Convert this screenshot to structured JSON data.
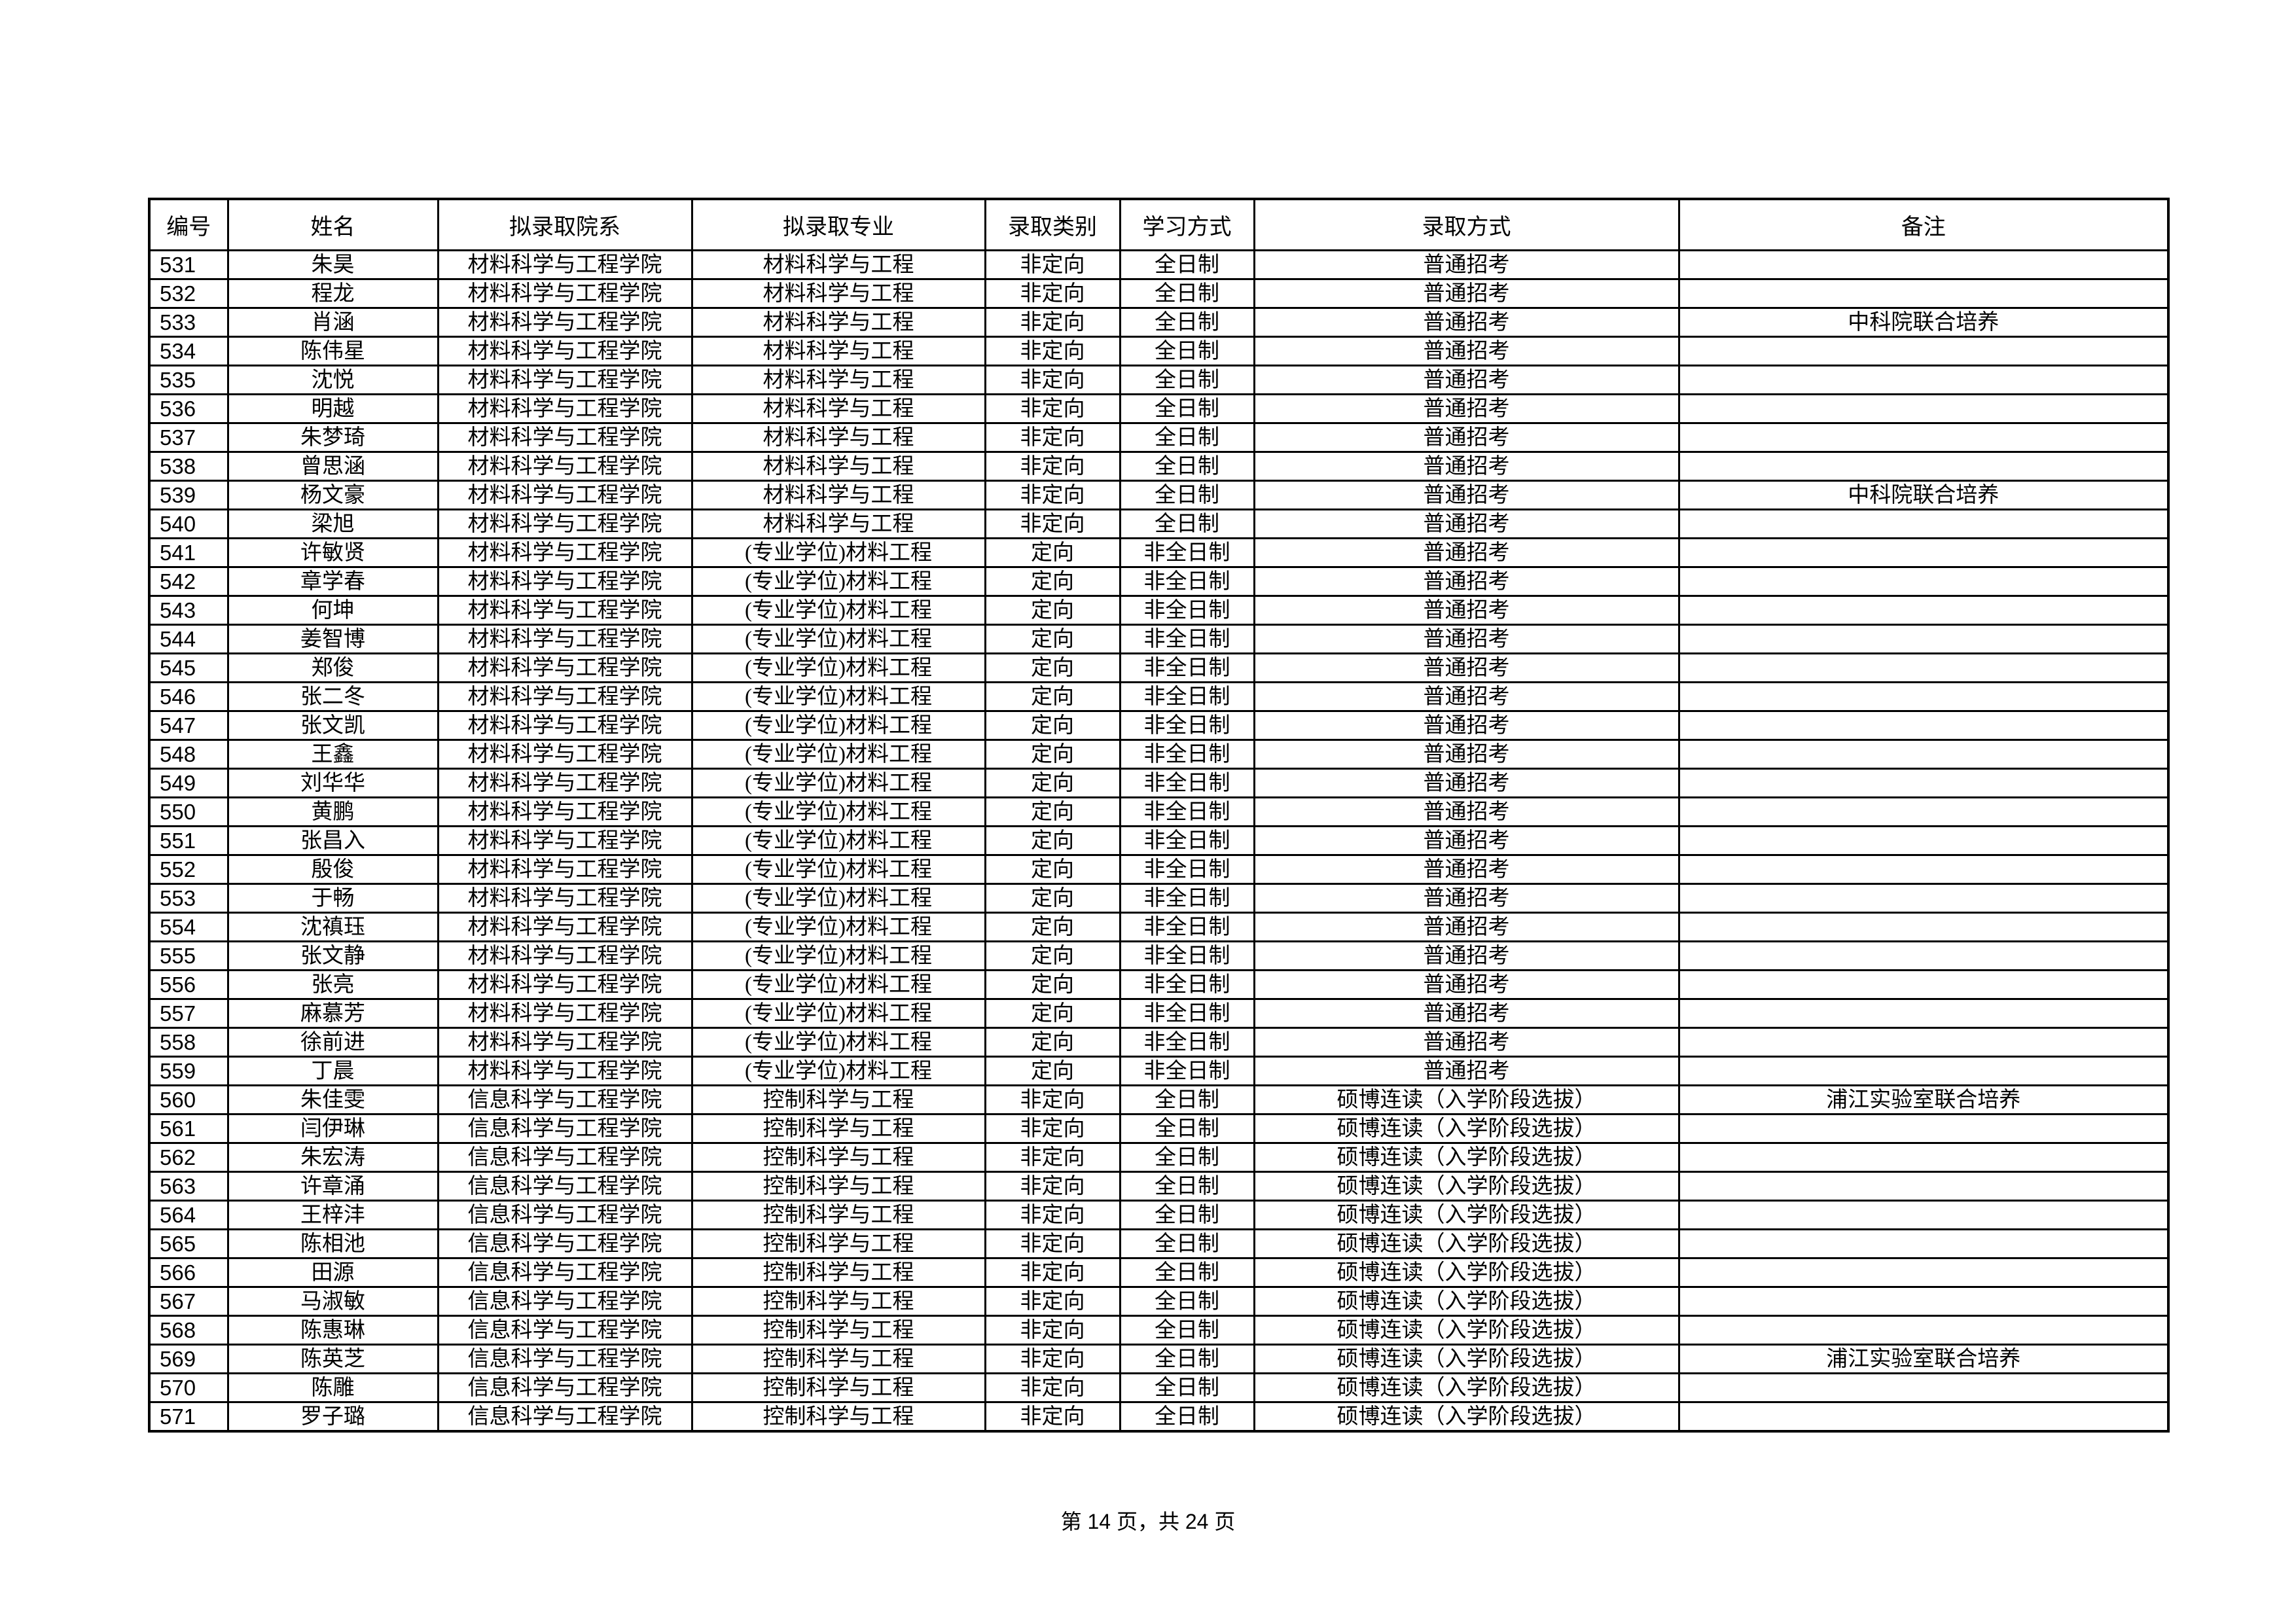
{
  "table": {
    "headers": [
      "编号",
      "姓名",
      "拟录取院系",
      "拟录取专业",
      "录取类别",
      "学习方式",
      "录取方式",
      "备注"
    ],
    "rows": [
      [
        "531",
        "朱昊",
        "材料科学与工程学院",
        "材料科学与工程",
        "非定向",
        "全日制",
        "普通招考",
        ""
      ],
      [
        "532",
        "程龙",
        "材料科学与工程学院",
        "材料科学与工程",
        "非定向",
        "全日制",
        "普通招考",
        ""
      ],
      [
        "533",
        "肖涵",
        "材料科学与工程学院",
        "材料科学与工程",
        "非定向",
        "全日制",
        "普通招考",
        "中科院联合培养"
      ],
      [
        "534",
        "陈伟星",
        "材料科学与工程学院",
        "材料科学与工程",
        "非定向",
        "全日制",
        "普通招考",
        ""
      ],
      [
        "535",
        "沈悦",
        "材料科学与工程学院",
        "材料科学与工程",
        "非定向",
        "全日制",
        "普通招考",
        ""
      ],
      [
        "536",
        "明越",
        "材料科学与工程学院",
        "材料科学与工程",
        "非定向",
        "全日制",
        "普通招考",
        ""
      ],
      [
        "537",
        "朱梦琦",
        "材料科学与工程学院",
        "材料科学与工程",
        "非定向",
        "全日制",
        "普通招考",
        ""
      ],
      [
        "538",
        "曾思涵",
        "材料科学与工程学院",
        "材料科学与工程",
        "非定向",
        "全日制",
        "普通招考",
        ""
      ],
      [
        "539",
        "杨文豪",
        "材料科学与工程学院",
        "材料科学与工程",
        "非定向",
        "全日制",
        "普通招考",
        "中科院联合培养"
      ],
      [
        "540",
        "梁旭",
        "材料科学与工程学院",
        "材料科学与工程",
        "非定向",
        "全日制",
        "普通招考",
        ""
      ],
      [
        "541",
        "许敏贤",
        "材料科学与工程学院",
        "(专业学位)材料工程",
        "定向",
        "非全日制",
        "普通招考",
        ""
      ],
      [
        "542",
        "章学春",
        "材料科学与工程学院",
        "(专业学位)材料工程",
        "定向",
        "非全日制",
        "普通招考",
        ""
      ],
      [
        "543",
        "何坤",
        "材料科学与工程学院",
        "(专业学位)材料工程",
        "定向",
        "非全日制",
        "普通招考",
        ""
      ],
      [
        "544",
        "姜智博",
        "材料科学与工程学院",
        "(专业学位)材料工程",
        "定向",
        "非全日制",
        "普通招考",
        ""
      ],
      [
        "545",
        "郑俊",
        "材料科学与工程学院",
        "(专业学位)材料工程",
        "定向",
        "非全日制",
        "普通招考",
        ""
      ],
      [
        "546",
        "张二冬",
        "材料科学与工程学院",
        "(专业学位)材料工程",
        "定向",
        "非全日制",
        "普通招考",
        ""
      ],
      [
        "547",
        "张文凯",
        "材料科学与工程学院",
        "(专业学位)材料工程",
        "定向",
        "非全日制",
        "普通招考",
        ""
      ],
      [
        "548",
        "王鑫",
        "材料科学与工程学院",
        "(专业学位)材料工程",
        "定向",
        "非全日制",
        "普通招考",
        ""
      ],
      [
        "549",
        "刘华华",
        "材料科学与工程学院",
        "(专业学位)材料工程",
        "定向",
        "非全日制",
        "普通招考",
        ""
      ],
      [
        "550",
        "黄鹏",
        "材料科学与工程学院",
        "(专业学位)材料工程",
        "定向",
        "非全日制",
        "普通招考",
        ""
      ],
      [
        "551",
        "张昌入",
        "材料科学与工程学院",
        "(专业学位)材料工程",
        "定向",
        "非全日制",
        "普通招考",
        ""
      ],
      [
        "552",
        "殷俊",
        "材料科学与工程学院",
        "(专业学位)材料工程",
        "定向",
        "非全日制",
        "普通招考",
        ""
      ],
      [
        "553",
        "于畅",
        "材料科学与工程学院",
        "(专业学位)材料工程",
        "定向",
        "非全日制",
        "普通招考",
        ""
      ],
      [
        "554",
        "沈禛珏",
        "材料科学与工程学院",
        "(专业学位)材料工程",
        "定向",
        "非全日制",
        "普通招考",
        ""
      ],
      [
        "555",
        "张文静",
        "材料科学与工程学院",
        "(专业学位)材料工程",
        "定向",
        "非全日制",
        "普通招考",
        ""
      ],
      [
        "556",
        "张亮",
        "材料科学与工程学院",
        "(专业学位)材料工程",
        "定向",
        "非全日制",
        "普通招考",
        ""
      ],
      [
        "557",
        "麻慕芳",
        "材料科学与工程学院",
        "(专业学位)材料工程",
        "定向",
        "非全日制",
        "普通招考",
        ""
      ],
      [
        "558",
        "徐前进",
        "材料科学与工程学院",
        "(专业学位)材料工程",
        "定向",
        "非全日制",
        "普通招考",
        ""
      ],
      [
        "559",
        "丁晨",
        "材料科学与工程学院",
        "(专业学位)材料工程",
        "定向",
        "非全日制",
        "普通招考",
        ""
      ],
      [
        "560",
        "朱佳雯",
        "信息科学与工程学院",
        "控制科学与工程",
        "非定向",
        "全日制",
        "硕博连读（入学阶段选拔）",
        "浦江实验室联合培养"
      ],
      [
        "561",
        "闫伊琳",
        "信息科学与工程学院",
        "控制科学与工程",
        "非定向",
        "全日制",
        "硕博连读（入学阶段选拔）",
        ""
      ],
      [
        "562",
        "朱宏涛",
        "信息科学与工程学院",
        "控制科学与工程",
        "非定向",
        "全日制",
        "硕博连读（入学阶段选拔）",
        ""
      ],
      [
        "563",
        "许章涌",
        "信息科学与工程学院",
        "控制科学与工程",
        "非定向",
        "全日制",
        "硕博连读（入学阶段选拔）",
        ""
      ],
      [
        "564",
        "王梓沣",
        "信息科学与工程学院",
        "控制科学与工程",
        "非定向",
        "全日制",
        "硕博连读（入学阶段选拔）",
        ""
      ],
      [
        "565",
        "陈相池",
        "信息科学与工程学院",
        "控制科学与工程",
        "非定向",
        "全日制",
        "硕博连读（入学阶段选拔）",
        ""
      ],
      [
        "566",
        "田源",
        "信息科学与工程学院",
        "控制科学与工程",
        "非定向",
        "全日制",
        "硕博连读（入学阶段选拔）",
        ""
      ],
      [
        "567",
        "马淑敏",
        "信息科学与工程学院",
        "控制科学与工程",
        "非定向",
        "全日制",
        "硕博连读（入学阶段选拔）",
        ""
      ],
      [
        "568",
        "陈惠琳",
        "信息科学与工程学院",
        "控制科学与工程",
        "非定向",
        "全日制",
        "硕博连读（入学阶段选拔）",
        ""
      ],
      [
        "569",
        "陈英芝",
        "信息科学与工程学院",
        "控制科学与工程",
        "非定向",
        "全日制",
        "硕博连读（入学阶段选拔）",
        "浦江实验室联合培养"
      ],
      [
        "570",
        "陈雕",
        "信息科学与工程学院",
        "控制科学与工程",
        "非定向",
        "全日制",
        "硕博连读（入学阶段选拔）",
        ""
      ],
      [
        "571",
        "罗子璐",
        "信息科学与工程学院",
        "控制科学与工程",
        "非定向",
        "全日制",
        "硕博连读（入学阶段选拔）",
        ""
      ]
    ]
  },
  "footer": {
    "page_label": "第 14 页，共 24 页"
  }
}
